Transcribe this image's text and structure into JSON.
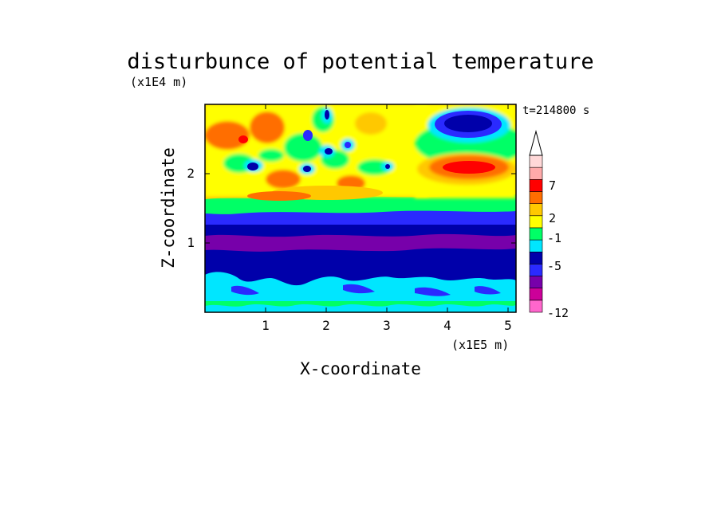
{
  "chart_data": {
    "type": "heatmap",
    "title": "disturbunce of potential temperature",
    "xlabel": "X-coordinate",
    "ylabel": "Z-coordinate",
    "x_unit": "(x1E5 m)",
    "y_unit": "(x1E4 m)",
    "time_label": "t=214800 s",
    "xlim": [
      0,
      5.15
    ],
    "ylim": [
      0,
      2.98
    ],
    "x_ticks": [
      "1",
      "2",
      "3",
      "4",
      "5"
    ],
    "y_ticks": [
      "1",
      "2"
    ],
    "colorbar_labels": [
      "7",
      "2",
      "-1",
      "-5",
      "-12"
    ],
    "colorbar_colors": [
      "#ff66cc",
      "#cc0099",
      "#7700aa",
      "#2a2aff",
      "#0000aa",
      "#00e6ff",
      "#00ff66",
      "#ffff00",
      "#ffc800",
      "#ff6e00",
      "#ff0000",
      "#ffaaaa",
      "#ffd8d8"
    ],
    "colorbar_extend": "max",
    "regions": [
      {
        "feature": "near-surface cyan band",
        "x": [
          0,
          5.15
        ],
        "z": [
          0,
          0.5
        ],
        "value": -2
      },
      {
        "feature": "lower dark-blue layer",
        "x": [
          0,
          5.15
        ],
        "z": [
          0.5,
          1.3
        ],
        "value": -5
      },
      {
        "feature": "purple band",
        "x": [
          0,
          5.15
        ],
        "z": [
          0.9,
          1.1
        ],
        "value": -7
      },
      {
        "feature": "green/yellow transition",
        "x": [
          0,
          5.15
        ],
        "z": [
          1.3,
          1.6
        ],
        "value": 0.5
      },
      {
        "feature": "red maximum",
        "x": [
          3.6,
          5.0
        ],
        "z": [
          1.9,
          2.3
        ],
        "value": 8
      },
      {
        "feature": "blue minimum",
        "x": [
          3.7,
          4.9
        ],
        "z": [
          2.5,
          2.9
        ],
        "value": -5
      },
      {
        "feature": "upper-left wave pattern",
        "x": [
          0,
          3.6
        ],
        "z": [
          1.6,
          2.98
        ],
        "value": 2
      }
    ]
  }
}
